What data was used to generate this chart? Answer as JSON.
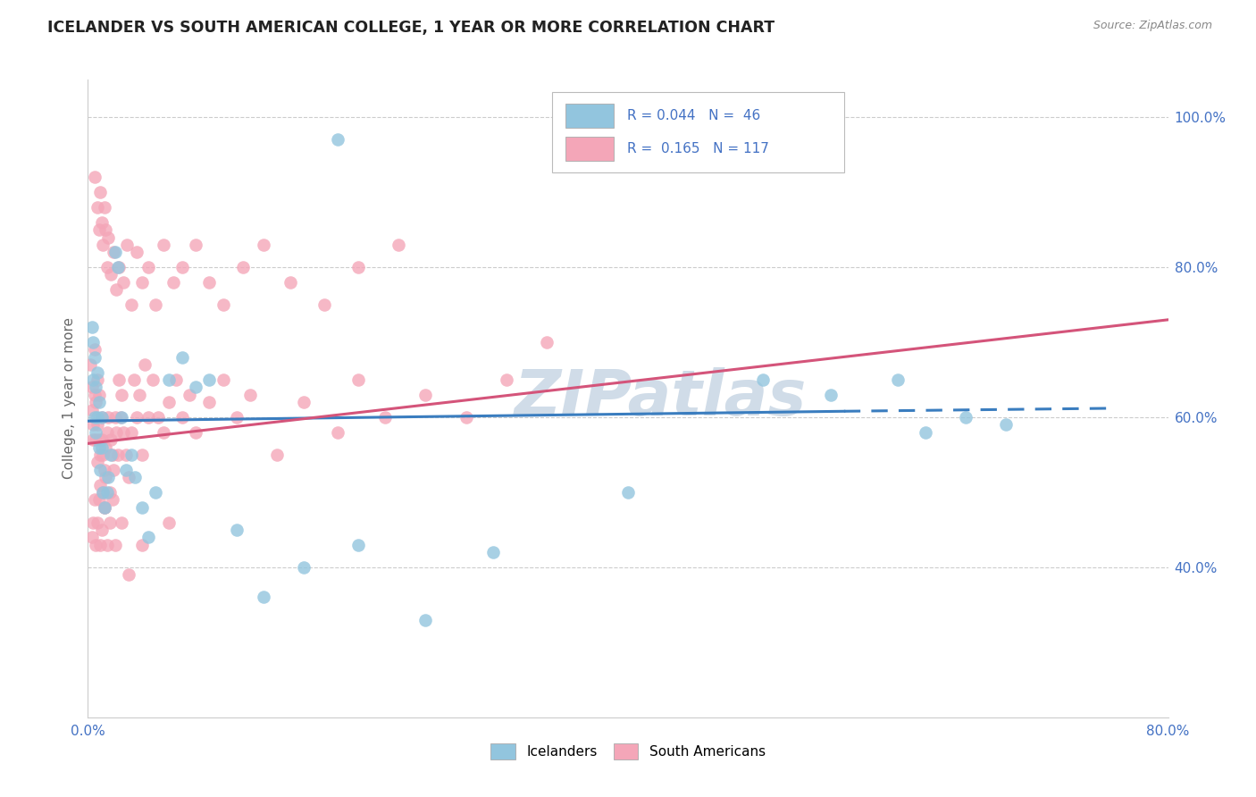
{
  "title": "ICELANDER VS SOUTH AMERICAN COLLEGE, 1 YEAR OR MORE CORRELATION CHART",
  "source": "Source: ZipAtlas.com",
  "ylabel": "College, 1 year or more",
  "xlim": [
    0.0,
    0.8
  ],
  "ylim": [
    0.2,
    1.05
  ],
  "yticks": [
    0.4,
    0.6,
    0.8,
    1.0
  ],
  "ytick_labels": [
    "40.0%",
    "60.0%",
    "80.0%",
    "100.0%"
  ],
  "xticks": [
    0.0,
    0.8
  ],
  "xtick_labels": [
    "0.0%",
    "80.0%"
  ],
  "blue_color": "#92c5de",
  "pink_color": "#f4a6b8",
  "blue_line_color": "#3a7dbf",
  "pink_line_color": "#d4547a",
  "tick_color": "#4472c4",
  "grid_color": "#cccccc",
  "watermark": "ZIPatlas",
  "watermark_color": "#d0dce8",
  "blue_line_solid": [
    [
      0.0,
      0.595
    ],
    [
      0.56,
      0.608
    ]
  ],
  "blue_line_dashed": [
    [
      0.56,
      0.608
    ],
    [
      0.76,
      0.612
    ]
  ],
  "pink_line": [
    [
      0.0,
      0.565
    ],
    [
      0.8,
      0.73
    ]
  ],
  "legend_r_blue": "R = 0.044",
  "legend_n_blue": "N =  46",
  "legend_r_pink": "R =  0.165",
  "legend_n_pink": "N = 117",
  "icelanders_x": [
    0.003,
    0.004,
    0.004,
    0.005,
    0.005,
    0.006,
    0.006,
    0.007,
    0.007,
    0.008,
    0.008,
    0.009,
    0.01,
    0.01,
    0.011,
    0.012,
    0.014,
    0.015,
    0.017,
    0.02,
    0.022,
    0.025,
    0.028,
    0.032,
    0.035,
    0.04,
    0.045,
    0.05,
    0.06,
    0.07,
    0.08,
    0.09,
    0.11,
    0.13,
    0.16,
    0.185,
    0.2,
    0.25,
    0.3,
    0.4,
    0.5,
    0.55,
    0.6,
    0.62,
    0.65,
    0.68
  ],
  "icelanders_y": [
    0.72,
    0.7,
    0.65,
    0.68,
    0.6,
    0.64,
    0.58,
    0.66,
    0.6,
    0.62,
    0.56,
    0.53,
    0.6,
    0.56,
    0.5,
    0.48,
    0.5,
    0.52,
    0.55,
    0.82,
    0.8,
    0.6,
    0.53,
    0.55,
    0.52,
    0.48,
    0.44,
    0.5,
    0.65,
    0.68,
    0.64,
    0.65,
    0.45,
    0.36,
    0.4,
    0.97,
    0.43,
    0.33,
    0.42,
    0.5,
    0.65,
    0.63,
    0.65,
    0.58,
    0.6,
    0.59
  ],
  "south_americans_x": [
    0.002,
    0.003,
    0.003,
    0.004,
    0.004,
    0.005,
    0.005,
    0.006,
    0.006,
    0.007,
    0.007,
    0.007,
    0.008,
    0.008,
    0.009,
    0.009,
    0.01,
    0.01,
    0.011,
    0.011,
    0.012,
    0.012,
    0.013,
    0.013,
    0.014,
    0.015,
    0.016,
    0.017,
    0.018,
    0.019,
    0.02,
    0.021,
    0.022,
    0.023,
    0.024,
    0.025,
    0.026,
    0.028,
    0.03,
    0.032,
    0.034,
    0.036,
    0.038,
    0.04,
    0.042,
    0.045,
    0.048,
    0.052,
    0.056,
    0.06,
    0.065,
    0.07,
    0.075,
    0.08,
    0.09,
    0.1,
    0.11,
    0.12,
    0.14,
    0.16,
    0.185,
    0.2,
    0.22,
    0.25,
    0.28,
    0.31,
    0.34,
    0.005,
    0.007,
    0.008,
    0.009,
    0.01,
    0.011,
    0.012,
    0.013,
    0.014,
    0.015,
    0.017,
    0.019,
    0.021,
    0.023,
    0.026,
    0.029,
    0.032,
    0.036,
    0.04,
    0.045,
    0.05,
    0.056,
    0.063,
    0.07,
    0.08,
    0.09,
    0.1,
    0.115,
    0.13,
    0.15,
    0.175,
    0.2,
    0.23,
    0.003,
    0.004,
    0.005,
    0.006,
    0.007,
    0.008,
    0.009,
    0.01,
    0.012,
    0.014,
    0.016,
    0.018,
    0.02,
    0.025,
    0.03,
    0.04,
    0.06
  ],
  "south_americans_y": [
    0.67,
    0.64,
    0.61,
    0.59,
    0.57,
    0.69,
    0.63,
    0.62,
    0.57,
    0.65,
    0.59,
    0.54,
    0.63,
    0.57,
    0.55,
    0.51,
    0.6,
    0.57,
    0.55,
    0.5,
    0.53,
    0.48,
    0.56,
    0.52,
    0.58,
    0.6,
    0.5,
    0.57,
    0.55,
    0.53,
    0.6,
    0.58,
    0.55,
    0.65,
    0.6,
    0.63,
    0.58,
    0.55,
    0.52,
    0.58,
    0.65,
    0.6,
    0.63,
    0.55,
    0.67,
    0.6,
    0.65,
    0.6,
    0.58,
    0.62,
    0.65,
    0.6,
    0.63,
    0.58,
    0.62,
    0.65,
    0.6,
    0.63,
    0.55,
    0.62,
    0.58,
    0.65,
    0.6,
    0.63,
    0.6,
    0.65,
    0.7,
    0.92,
    0.88,
    0.85,
    0.9,
    0.86,
    0.83,
    0.88,
    0.85,
    0.8,
    0.84,
    0.79,
    0.82,
    0.77,
    0.8,
    0.78,
    0.83,
    0.75,
    0.82,
    0.78,
    0.8,
    0.75,
    0.83,
    0.78,
    0.8,
    0.83,
    0.78,
    0.75,
    0.8,
    0.83,
    0.78,
    0.75,
    0.8,
    0.83,
    0.44,
    0.46,
    0.49,
    0.43,
    0.46,
    0.49,
    0.43,
    0.45,
    0.48,
    0.43,
    0.46,
    0.49,
    0.43,
    0.46,
    0.39,
    0.43,
    0.46
  ]
}
